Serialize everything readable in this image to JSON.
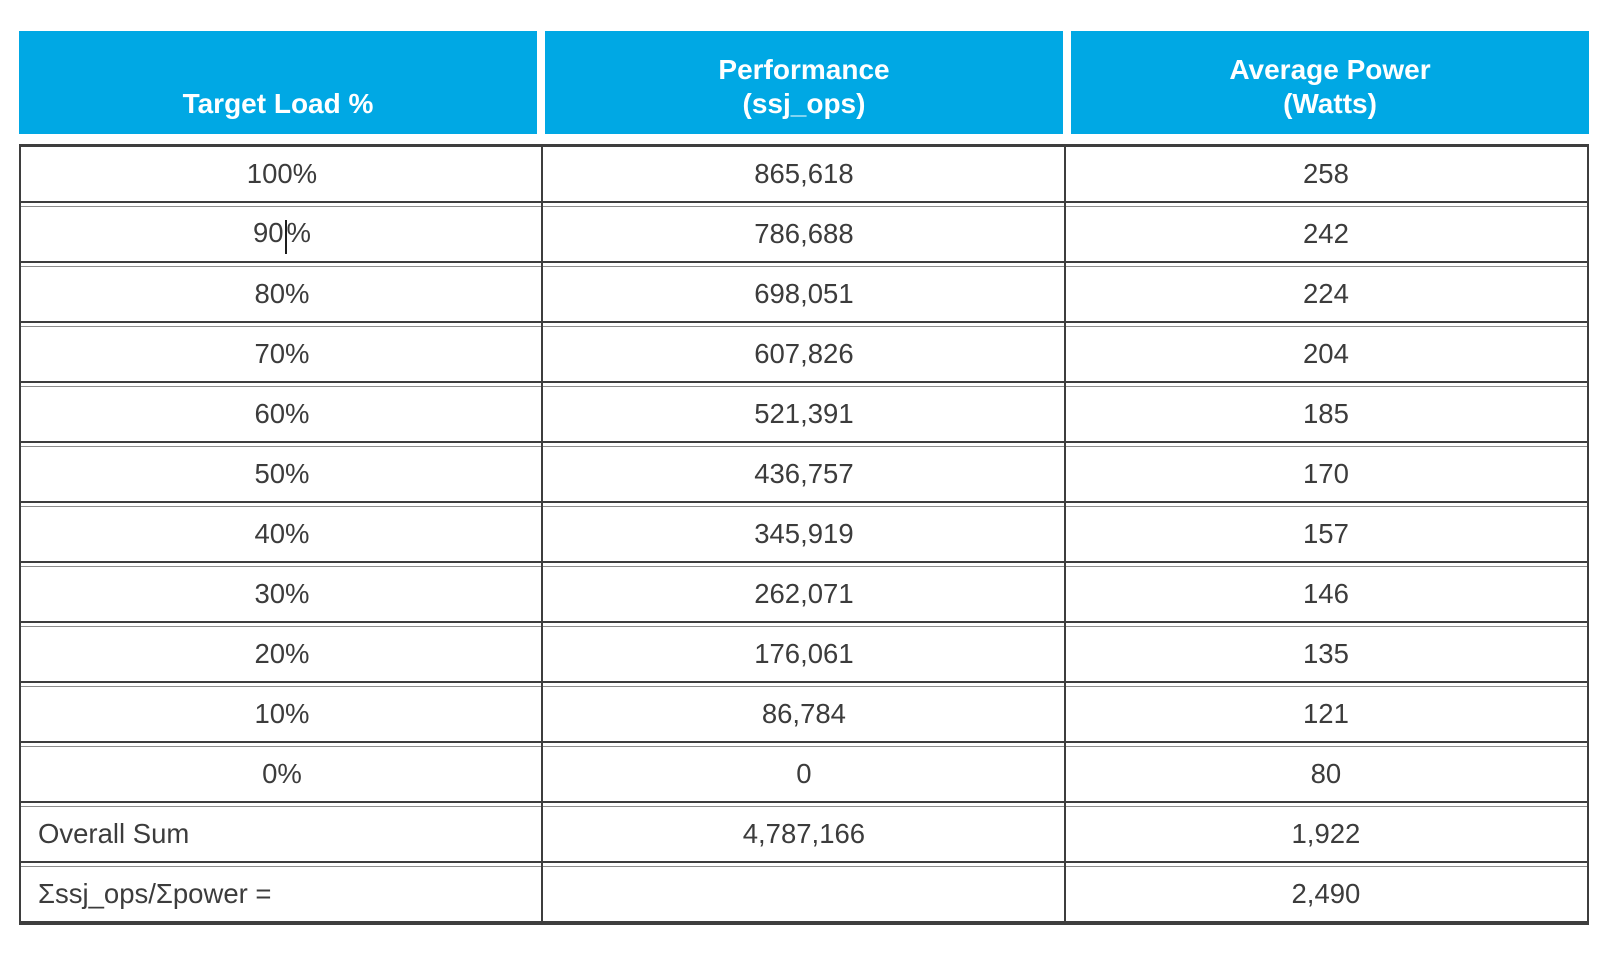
{
  "table": {
    "colors": {
      "header_bg": "#00A8E4",
      "header_text": "#FFFFFF",
      "border": "#3E3E3E",
      "body_text": "#3C3C3C"
    },
    "columns": [
      {
        "line1": "",
        "line2": "Target Load %"
      },
      {
        "line1": "Performance",
        "line2": "(ssj_ops)"
      },
      {
        "line1": "Average Power",
        "line2": "(Watts)"
      }
    ],
    "rows": [
      {
        "load": "100%",
        "ssj_ops": "865,618",
        "watts": "258"
      },
      {
        "load": "90%",
        "ssj_ops": "786,688",
        "watts": "242",
        "caret_after": "90"
      },
      {
        "load": "80%",
        "ssj_ops": "698,051",
        "watts": "224"
      },
      {
        "load": "70%",
        "ssj_ops": "607,826",
        "watts": "204"
      },
      {
        "load": "60%",
        "ssj_ops": "521,391",
        "watts": "185"
      },
      {
        "load": "50%",
        "ssj_ops": "436,757",
        "watts": "170"
      },
      {
        "load": "40%",
        "ssj_ops": "345,919",
        "watts": "157"
      },
      {
        "load": "30%",
        "ssj_ops": "262,071",
        "watts": "146"
      },
      {
        "load": "20%",
        "ssj_ops": "176,061",
        "watts": "135"
      },
      {
        "load": "10%",
        "ssj_ops": "86,784",
        "watts": "121"
      },
      {
        "load": "0%",
        "ssj_ops": "0",
        "watts": "80"
      },
      {
        "load": "Overall Sum",
        "ssj_ops": "4,787,166",
        "watts": "1,922",
        "align": "left"
      },
      {
        "load": "Σssj_ops/Σpower =",
        "ssj_ops": "",
        "watts": "2,490",
        "align": "left"
      }
    ]
  }
}
